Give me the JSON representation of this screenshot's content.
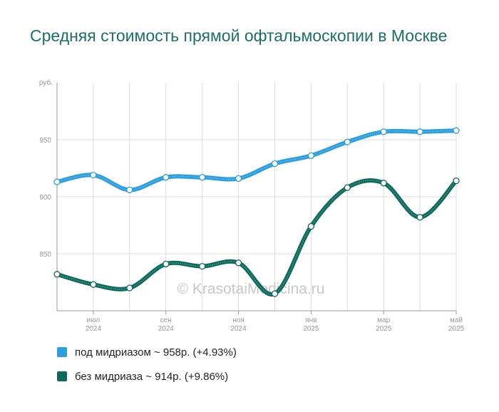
{
  "title": "Средняя стоимость прямой офтальмоскопии в Москве",
  "watermark": "© KrasotaiMedicina.ru",
  "chart_data": {
    "type": "line",
    "title": "Средняя стоимость прямой офтальмоскопии в Москве",
    "ylabel": "руб.",
    "ylim": [
      800,
      1000
    ],
    "yticks": [
      850,
      900,
      950
    ],
    "x": [
      "2024-06",
      "2024-07",
      "2024-08",
      "2024-09",
      "2024-10",
      "2024-11",
      "2024-12",
      "2025-01",
      "2025-02",
      "2025-03",
      "2025-04",
      "2025-05"
    ],
    "tick_labels": [
      {
        "index": 1,
        "month": "июл",
        "year": "2024"
      },
      {
        "index": 3,
        "month": "сен",
        "year": "2024"
      },
      {
        "index": 5,
        "month": "ноя",
        "year": "2024"
      },
      {
        "index": 7,
        "month": "янв",
        "year": "2025"
      },
      {
        "index": 9,
        "month": "мар",
        "year": "2025"
      },
      {
        "index": 11,
        "month": "май",
        "year": "2025"
      }
    ],
    "grid": true,
    "legend_position": "bottom-left",
    "series": [
      {
        "name": "под мидриазом",
        "color": "#2a9fe0",
        "values": [
          913,
          919,
          906,
          917,
          917,
          916,
          929,
          936,
          948,
          957,
          957,
          958
        ]
      },
      {
        "name": "без мидриаза",
        "color": "#0d6b5e",
        "values": [
          832,
          823,
          820,
          841,
          839,
          842,
          815,
          874,
          908,
          912,
          882,
          914
        ]
      }
    ]
  },
  "legend": [
    {
      "label": "под мидриазом ~ 958р. (+4.93%)",
      "color": "#2a9fe0"
    },
    {
      "label": "без мидриаза ~ 914р. (+9.86%)",
      "color": "#0d6b5e"
    }
  ]
}
